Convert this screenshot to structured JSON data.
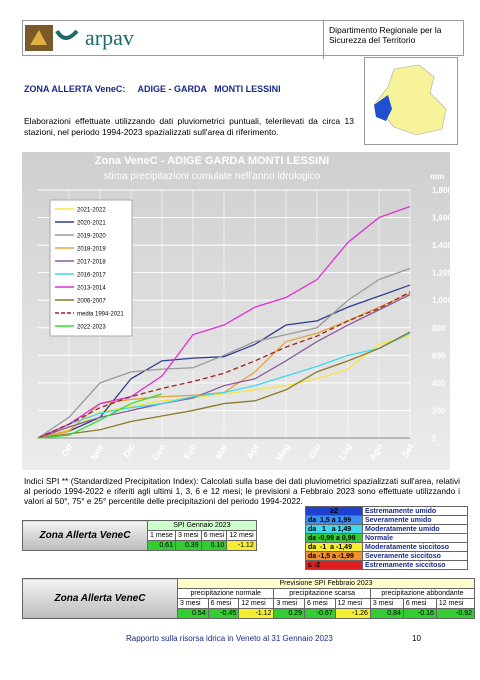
{
  "header": {
    "logo": "arpav",
    "department": "Dipartimento Regionale per la Sicurezza del Territorio"
  },
  "zone_title": "ZONA ALLERTA VeneC:     ADIGE - GARDA   MONTI LESSINI",
  "intro": "Elaborazioni effettuate utilizzando dati pluviometrici puntuali, telerilevati da circa 13 stazioni, nel periodo 1994-2023 spazializzati sull'area di riferimento.",
  "chart_data": {
    "type": "line",
    "title": "Zona VeneC -  ADIGE GARDA MONTI  LESSINI",
    "subtitle": "stima precipitazioni cumulate nell'anno idrologico",
    "y_label": "mm",
    "categories": [
      null,
      "Ott",
      "Nov",
      "Dic",
      "Gen",
      "Feb",
      "Mar",
      "Apr",
      "Mag",
      "Giu",
      "Lug",
      "Ago",
      "Set"
    ],
    "ylim": [
      0,
      1800
    ],
    "yticks": [
      0,
      200,
      400,
      600,
      800,
      {
        "value": 1000,
        "label": "1,000"
      },
      {
        "value": 1200,
        "label": "1,200"
      },
      {
        "value": 1400,
        "label": "1,400"
      },
      {
        "value": 1600,
        "label": "1,600"
      },
      {
        "value": 1800,
        "label": "1,800"
      }
    ],
    "grid": true,
    "series": [
      {
        "name": "2021-2022",
        "color": "#f5e642",
        "values": [
          0,
          60,
          190,
          230,
          270,
          290,
          320,
          350,
          380,
          430,
          500,
          680,
          740
        ]
      },
      {
        "name": "2020-2021",
        "color": "#2e3f8f",
        "values": [
          0,
          50,
          150,
          430,
          560,
          580,
          590,
          680,
          820,
          850,
          950,
          1030,
          1110
        ]
      },
      {
        "name": "2019-2020",
        "color": "#9a9a9a",
        "values": [
          0,
          150,
          400,
          480,
          500,
          510,
          600,
          700,
          750,
          800,
          1000,
          1150,
          1230
        ]
      },
      {
        "name": "2018-2019",
        "color": "#e8a23c",
        "values": [
          0,
          50,
          250,
          280,
          300,
          310,
          330,
          480,
          700,
          760,
          850,
          950,
          1050
        ]
      },
      {
        "name": "2017-2018",
        "color": "#8a5a9c",
        "values": [
          0,
          80,
          150,
          200,
          250,
          290,
          380,
          430,
          560,
          700,
          820,
          930,
          1040
        ]
      },
      {
        "name": "2016-2017",
        "color": "#3fd7f0",
        "values": [
          0,
          100,
          180,
          220,
          250,
          300,
          330,
          380,
          450,
          520,
          600,
          650,
          760
        ]
      },
      {
        "name": "2013-2014",
        "color": "#e030d0",
        "values": [
          0,
          100,
          250,
          300,
          450,
          750,
          820,
          950,
          1020,
          1150,
          1420,
          1600,
          1680
        ]
      },
      {
        "name": "2006-2007",
        "color": "#8c7a2a",
        "values": [
          0,
          30,
          60,
          120,
          160,
          200,
          250,
          270,
          350,
          480,
          560,
          650,
          770
        ]
      },
      {
        "name": "media 1994-2021",
        "color": "#a02020",
        "dashed": true,
        "values": [
          0,
          100,
          220,
          300,
          360,
          410,
          470,
          560,
          660,
          740,
          850,
          940,
          1060
        ]
      },
      {
        "name": "2022-2023",
        "color": "#2ee02e",
        "values": [
          0,
          20,
          130,
          250,
          320,
          null,
          null,
          null,
          null,
          null,
          null,
          null,
          null
        ]
      }
    ]
  },
  "spi_text": "Indici SPI ** (Standardized Precipitation Index): Calcolati sulla base dei dati pluviometrici spazializzati sull'area, relativi al periodo 1994-2022 e riferiti agli ultimi 1, 3, 6 e 12 mesi; le previsioni a Febbraio 2023 sono effettuate utilizzando i valori al 50°, 75° e 25° percentile delle precipitazioni del periodo 1994-2022.",
  "spi_table": {
    "zone": "Zona Allerta VeneC",
    "title": "SPI Gennaio 2023",
    "headers": [
      "1 mese",
      "3 mesi",
      "6 mesi",
      "12 mesi"
    ],
    "values": [
      "0.61",
      "0.39",
      "0.10",
      "-1.12"
    ]
  },
  "spi_legend": [
    {
      "range": "≥2",
      "label": "Estremamente umido"
    },
    {
      "range": "da  1,5 a 1,99",
      "label": "Severamente umido"
    },
    {
      "range": "da   1   a 1,49",
      "label": "Moderatamente umido"
    },
    {
      "range": "da -0,99 a 0,99",
      "label": "Normale"
    },
    {
      "range": "da  -1  a -1,49",
      "label": "Moderatamente siccitoso"
    },
    {
      "range": "da -1,5 a -1,99",
      "label": "Severamente siccitoso"
    },
    {
      "range": "≤ -2",
      "label": "Estremamente siccitoso"
    }
  ],
  "forecast_table": {
    "zone": "Zona Allerta VeneC",
    "title": "Previsione SPI Febbraio 2023",
    "groups": [
      "precipitazione normale",
      "precipitazione scarsa",
      "precipitazione abbondante"
    ],
    "headers": [
      "3 mesi",
      "6 mesi",
      "12 mesi",
      "3 mesi",
      "6 mesi",
      "12 mesi",
      "3 mesi",
      "6 mesi",
      "12 mesi"
    ],
    "values": [
      "0.54",
      "-0.45",
      "-1.12",
      "0.29",
      "-0.67",
      "-1.26",
      "0.84",
      "-0.16",
      "-0.92"
    ]
  },
  "footer": {
    "text": "Rapporto sulla risorsa idrica in Veneto al 31 Gennaio 2023",
    "page": "10"
  }
}
